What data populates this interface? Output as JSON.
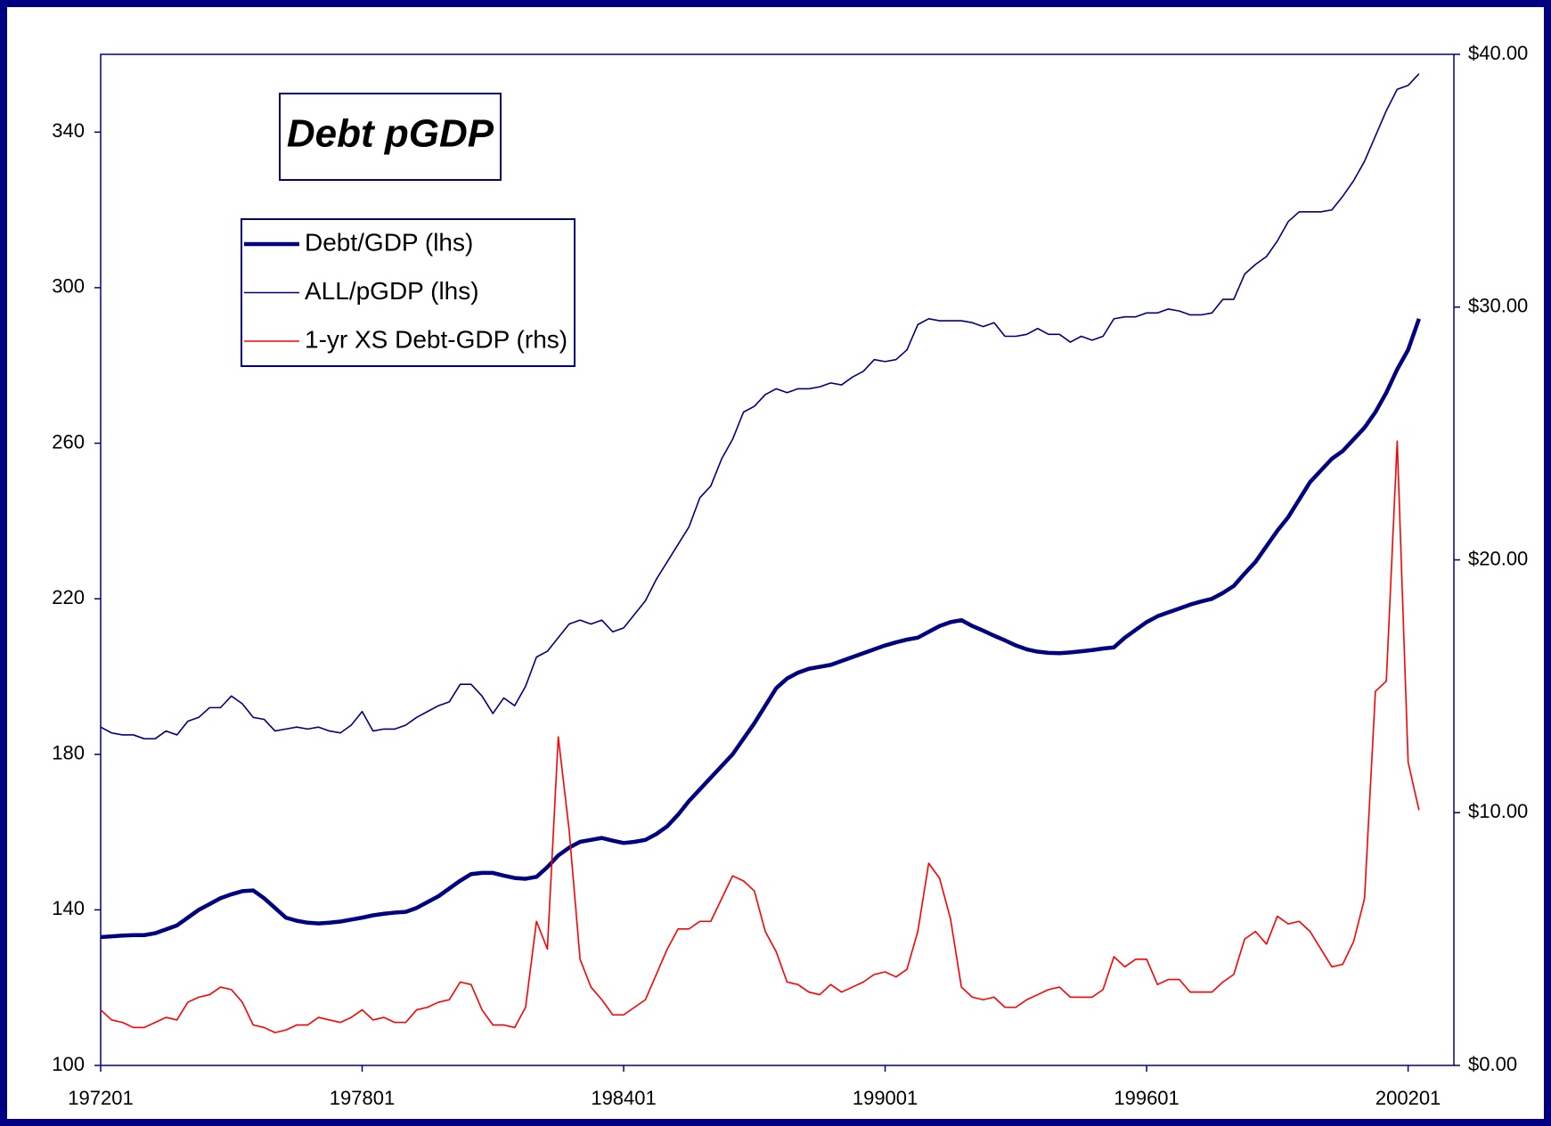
{
  "chart_data": {
    "type": "line",
    "title": "Debt pGDP",
    "categories": [
      "197201",
      null,
      null,
      null,
      null,
      null,
      null,
      null,
      null,
      null,
      null,
      null,
      null,
      null,
      null,
      null,
      null,
      null,
      null,
      null,
      null,
      null,
      null,
      null,
      "197801",
      null,
      null,
      null,
      null,
      null,
      null,
      null,
      null,
      null,
      null,
      null,
      null,
      null,
      null,
      null,
      null,
      null,
      null,
      null,
      null,
      null,
      null,
      null,
      "198401",
      null,
      null,
      null,
      null,
      null,
      null,
      null,
      null,
      null,
      null,
      null,
      null,
      null,
      null,
      null,
      null,
      null,
      null,
      null,
      null,
      null,
      null,
      null,
      "199001",
      null,
      null,
      null,
      null,
      null,
      null,
      null,
      null,
      null,
      null,
      null,
      null,
      null,
      null,
      null,
      null,
      null,
      null,
      null,
      null,
      null,
      null,
      null,
      "199601",
      null,
      null,
      null,
      null,
      null,
      null,
      null,
      null,
      null,
      null,
      null,
      null,
      null,
      null,
      null,
      null,
      null,
      null,
      null,
      null,
      null,
      null,
      null,
      "200201",
      null
    ],
    "series": [
      {
        "name": "Debt/GDP (lhs)",
        "color": "#000080",
        "axis": "y",
        "values": [
          133,
          133.2,
          133.4,
          133.5,
          133.5,
          134,
          135,
          136,
          138,
          140,
          141.5,
          143,
          144,
          144.8,
          145,
          143,
          140.5,
          138,
          137.2,
          136.7,
          136.5,
          136.7,
          137,
          137.5,
          138,
          138.6,
          139,
          139.3,
          139.5,
          140.5,
          142,
          143.5,
          145.5,
          147.5,
          149.2,
          149.5,
          149.5,
          148.8,
          148.2,
          148,
          148.5,
          151,
          154,
          156,
          157.5,
          158,
          158.5,
          157.8,
          157.2,
          157.5,
          158,
          159.5,
          161.5,
          164.5,
          168,
          171,
          174,
          177,
          180,
          184,
          188,
          192.5,
          197,
          199.5,
          201,
          202,
          202.5,
          203,
          204,
          205,
          206,
          207,
          208,
          208.8,
          209.5,
          210,
          211.5,
          213,
          214,
          214.5,
          213,
          211.8,
          210.5,
          209.3,
          208,
          207,
          206.4,
          206.1,
          206,
          206.2,
          206.5,
          206.8,
          207.2,
          207.5,
          210,
          212,
          214,
          215.5,
          216.5,
          217.5,
          218.5,
          219.3,
          220,
          221.5,
          223.3,
          226.5,
          229.5,
          233.5,
          237.5,
          241,
          245.5,
          250,
          253,
          256,
          258,
          261,
          264,
          268,
          273,
          279,
          284,
          292
        ]
      },
      {
        "name": "ALL/pGDP (lhs)",
        "color": "#000080",
        "axis": "y",
        "values": [
          187,
          185.5,
          185,
          185,
          184,
          184,
          186,
          185,
          188.5,
          189.5,
          192,
          192,
          195,
          193,
          189.5,
          189,
          186,
          186.5,
          187,
          186.5,
          187,
          186,
          185.5,
          187.5,
          191,
          186,
          186.5,
          186.5,
          187.5,
          189.5,
          191,
          192.5,
          193.5,
          198,
          198,
          195,
          190.5,
          194.5,
          192.5,
          197.5,
          205,
          206.5,
          210,
          213.5,
          214.5,
          213.5,
          214.5,
          211.5,
          212.5,
          216,
          219.5,
          225,
          229.5,
          234,
          238.5,
          246,
          249,
          256,
          261,
          268,
          269.5,
          272.5,
          274,
          273,
          274,
          274,
          274.5,
          275.5,
          275,
          277,
          278.5,
          281.5,
          281,
          281.5,
          284,
          290.5,
          292,
          291.5,
          291.5,
          291.5,
          291,
          290,
          291,
          287.5,
          287.5,
          288,
          289.5,
          288,
          288,
          286,
          287.5,
          286.5,
          287.5,
          292,
          292.5,
          292.5,
          293.5,
          293.5,
          294.5,
          294,
          293,
          293,
          293.5,
          297,
          297,
          303.5,
          306,
          308,
          312,
          317,
          319.5,
          319.5,
          319.5,
          320,
          323.5,
          327.5,
          332.5,
          339,
          345.5,
          351,
          352,
          355
        ]
      },
      {
        "name": "1-yr XS Debt-GDP (rhs)",
        "color": "#ff0000",
        "axis": "y2",
        "values": [
          2.2,
          1.8,
          1.7,
          1.5,
          1.5,
          1.7,
          1.9,
          1.8,
          2.5,
          2.7,
          2.8,
          3.1,
          3.0,
          2.5,
          1.6,
          1.5,
          1.3,
          1.4,
          1.6,
          1.6,
          1.9,
          1.8,
          1.7,
          1.9,
          2.2,
          1.8,
          1.9,
          1.7,
          1.7,
          2.2,
          2.3,
          2.5,
          2.6,
          3.3,
          3.2,
          2.2,
          1.6,
          1.6,
          1.5,
          2.3,
          5.7,
          4.6,
          13.0,
          9.3,
          4.2,
          3.1,
          2.6,
          2.0,
          2.0,
          2.3,
          2.6,
          3.6,
          4.6,
          5.4,
          5.4,
          5.7,
          5.7,
          6.6,
          7.5,
          7.3,
          6.9,
          5.3,
          4.5,
          3.3,
          3.2,
          2.9,
          2.8,
          3.2,
          2.9,
          3.1,
          3.3,
          3.6,
          3.7,
          3.5,
          3.8,
          5.3,
          8.0,
          7.4,
          5.8,
          3.1,
          2.7,
          2.6,
          2.7,
          2.3,
          2.3,
          2.6,
          2.8,
          3.0,
          3.1,
          2.7,
          2.7,
          2.7,
          3.0,
          4.3,
          3.9,
          4.2,
          4.2,
          3.2,
          3.4,
          3.4,
          2.9,
          2.9,
          2.9,
          3.3,
          3.6,
          5.0,
          5.3,
          4.8,
          5.9,
          5.6,
          5.7,
          5.3,
          4.6,
          3.9,
          4.0,
          4.9,
          6.6,
          14.8,
          15.2,
          24.7,
          12.0,
          10.1
        ]
      }
    ],
    "ylim": [
      100,
      360
    ],
    "yticks": [
      100,
      140,
      180,
      220,
      260,
      300,
      340
    ],
    "y2lim": [
      0,
      40
    ],
    "y2ticks": [
      {
        "value": 0,
        "label": "$0.00"
      },
      {
        "value": 10,
        "label": "$10.00"
      },
      {
        "value": 20,
        "label": "$20.00"
      },
      {
        "value": 30,
        "label": "$30.00"
      },
      {
        "value": 40,
        "label": "$40.00"
      }
    ]
  }
}
